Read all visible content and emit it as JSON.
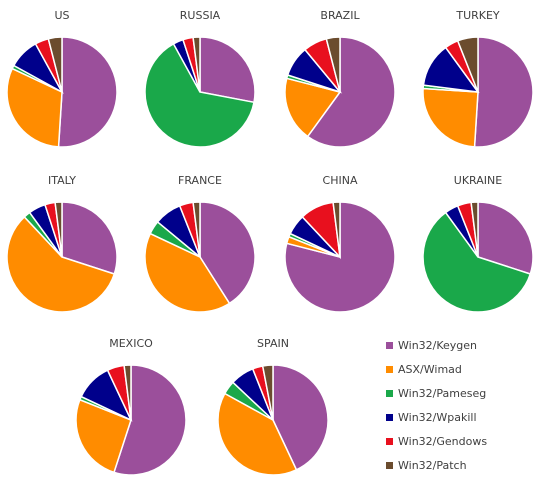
{
  "chart_data": {
    "type": "pie",
    "legend": [
      {
        "name": "Win32/Keygen",
        "color": "#9B4F9B"
      },
      {
        "name": "ASX/Wimad",
        "color": "#FF8C00"
      },
      {
        "name": "Win32/Pameseg",
        "color": "#1AA84A"
      },
      {
        "name": "Win32/Wpakill",
        "color": "#00008B"
      },
      {
        "name": "Win32/Gendows",
        "color": "#E8101E"
      },
      {
        "name": "Win32/Patch",
        "color": "#6B4C2E"
      }
    ],
    "charts": [
      {
        "title": "US",
        "values": [
          51,
          31,
          1,
          9,
          4,
          4
        ]
      },
      {
        "title": "RUSSIA",
        "values": [
          28,
          0,
          64,
          3,
          3,
          2
        ]
      },
      {
        "title": "BRAZIL",
        "values": [
          60,
          19,
          1,
          9,
          7,
          4
        ]
      },
      {
        "title": "TURKEY",
        "values": [
          51,
          25,
          1,
          13,
          4,
          6
        ]
      },
      {
        "title": "ITALY",
        "values": [
          30,
          58,
          2,
          5,
          3,
          2
        ]
      },
      {
        "title": "FRANCE",
        "values": [
          41,
          41,
          4,
          8,
          4,
          2
        ]
      },
      {
        "title": "CHINA",
        "values": [
          79,
          2,
          1,
          6,
          10,
          2
        ]
      },
      {
        "title": "UKRAINE",
        "values": [
          30,
          0,
          60,
          4,
          4,
          2
        ]
      },
      {
        "title": "MEXICO",
        "values": [
          55,
          26,
          1,
          11,
          5,
          2
        ]
      },
      {
        "title": "SPAIN",
        "values": [
          43,
          40,
          4,
          7,
          3,
          3
        ]
      }
    ]
  }
}
